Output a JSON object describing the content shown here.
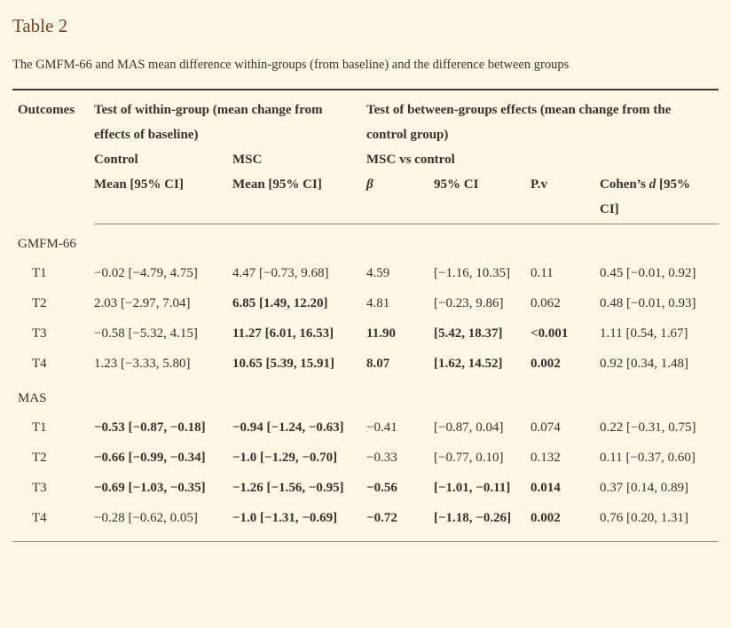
{
  "page": {
    "title": "Table 2",
    "subtitle": "The GMFM-66 and MAS mean difference within-groups (from baseline) and the difference between groups"
  },
  "colors": {
    "background": "#fcf7e4",
    "title_color": "#7a4028",
    "text": "#35332c",
    "rule_dark": "#3b3832",
    "rule_mid": "#8f8d83",
    "rule_light": "#9a988e"
  },
  "table": {
    "header": {
      "outcomes": "Outcomes",
      "within_group": "Test of within-group (mean change from effects of baseline)",
      "between_group": "Test of between-groups effects (mean change from the control group)",
      "control": "Control",
      "msc": "MSC",
      "msc_vs_control": "MSC vs control",
      "col_mean_control": "Mean [95% CI]",
      "col_mean_msc": "Mean [95% CI]",
      "col_beta": "β",
      "col_ci": "95% CI",
      "col_pv": "P.v",
      "cohen_prefix": "Cohen’s ",
      "cohen_d": "d",
      "cohen_suffix": " [95% CI]"
    },
    "sections": [
      {
        "label": "GMFM-66",
        "rows": [
          {
            "outcome": "T1",
            "cells": [
              {
                "text": "−0.02 [−4.79, 4.75]",
                "bold": false
              },
              {
                "text": "4.47 [−0.73, 9.68]",
                "bold": false
              },
              {
                "text": "4.59",
                "bold": false
              },
              {
                "text": "[−1.16, 10.35]",
                "bold": false
              },
              {
                "text": "0.11",
                "bold": false
              },
              {
                "text": "0.45 [−0.01, 0.92]",
                "bold": false
              }
            ]
          },
          {
            "outcome": "T2",
            "cells": [
              {
                "text": "2.03 [−2.97, 7.04]",
                "bold": false
              },
              {
                "text": "6.85 [1.49, 12.20]",
                "bold": true
              },
              {
                "text": "4.81",
                "bold": false
              },
              {
                "text": "[−0.23, 9.86]",
                "bold": false
              },
              {
                "text": "0.062",
                "bold": false
              },
              {
                "text": "0.48 [−0.01, 0.93]",
                "bold": false
              }
            ]
          },
          {
            "outcome": "T3",
            "cells": [
              {
                "text": "−0.58 [−5.32, 4.15]",
                "bold": false
              },
              {
                "text": "11.27 [6.01, 16.53]",
                "bold": true
              },
              {
                "text": "11.90",
                "bold": true
              },
              {
                "text": "[5.42, 18.37]",
                "bold": true
              },
              {
                "text": "<0.001",
                "bold": true
              },
              {
                "text": "1.11 [0.54, 1.67]",
                "bold": false
              }
            ]
          },
          {
            "outcome": "T4",
            "cells": [
              {
                "text": "1.23 [−3.33, 5.80]",
                "bold": false
              },
              {
                "text": "10.65 [5.39, 15.91]",
                "bold": true
              },
              {
                "text": "8.07",
                "bold": true
              },
              {
                "text": "[1.62, 14.52]",
                "bold": true
              },
              {
                "text": "0.002",
                "bold": true
              },
              {
                "text": "0.92 [0.34, 1.48]",
                "bold": false
              }
            ]
          }
        ]
      },
      {
        "label": "MAS",
        "rows": [
          {
            "outcome": "T1",
            "cells": [
              {
                "text": "−0.53 [−0.87, −0.18]",
                "bold": true
              },
              {
                "text": "−0.94 [−1.24, −0.63]",
                "bold": true
              },
              {
                "text": "−0.41",
                "bold": false
              },
              {
                "text": "[−0.87, 0.04]",
                "bold": false
              },
              {
                "text": "0.074",
                "bold": false
              },
              {
                "text": "0.22 [−0.31, 0.75]",
                "bold": false
              }
            ]
          },
          {
            "outcome": "T2",
            "cells": [
              {
                "text": "−0.66 [−0.99, −0.34]",
                "bold": true
              },
              {
                "text": "−1.0 [−1.29, −0.70]",
                "bold": true
              },
              {
                "text": "−0.33",
                "bold": false
              },
              {
                "text": "[−0.77, 0.10]",
                "bold": false
              },
              {
                "text": "0.132",
                "bold": false
              },
              {
                "text": "0.11 [−0.37, 0.60]",
                "bold": false
              }
            ]
          },
          {
            "outcome": "T3",
            "cells": [
              {
                "text": "−0.69 [−1.03, −0.35]",
                "bold": true
              },
              {
                "text": "−1.26 [−1.56, −0.95]",
                "bold": true
              },
              {
                "text": "−0.56",
                "bold": true
              },
              {
                "text": "[−1.01, −0.11]",
                "bold": true
              },
              {
                "text": "0.014",
                "bold": true
              },
              {
                "text": "0.37 [0.14, 0.89]",
                "bold": false
              }
            ]
          },
          {
            "outcome": "T4",
            "cells": [
              {
                "text": "−0.28 [−0.62, 0.05]",
                "bold": false
              },
              {
                "text": "−1.0 [−1.31, −0.69]",
                "bold": true
              },
              {
                "text": "−0.72",
                "bold": true
              },
              {
                "text": "[−1.18, −0.26]",
                "bold": true
              },
              {
                "text": "0.002",
                "bold": true
              },
              {
                "text": "0.76 [0.20, 1.31]",
                "bold": false
              }
            ]
          }
        ]
      }
    ]
  }
}
